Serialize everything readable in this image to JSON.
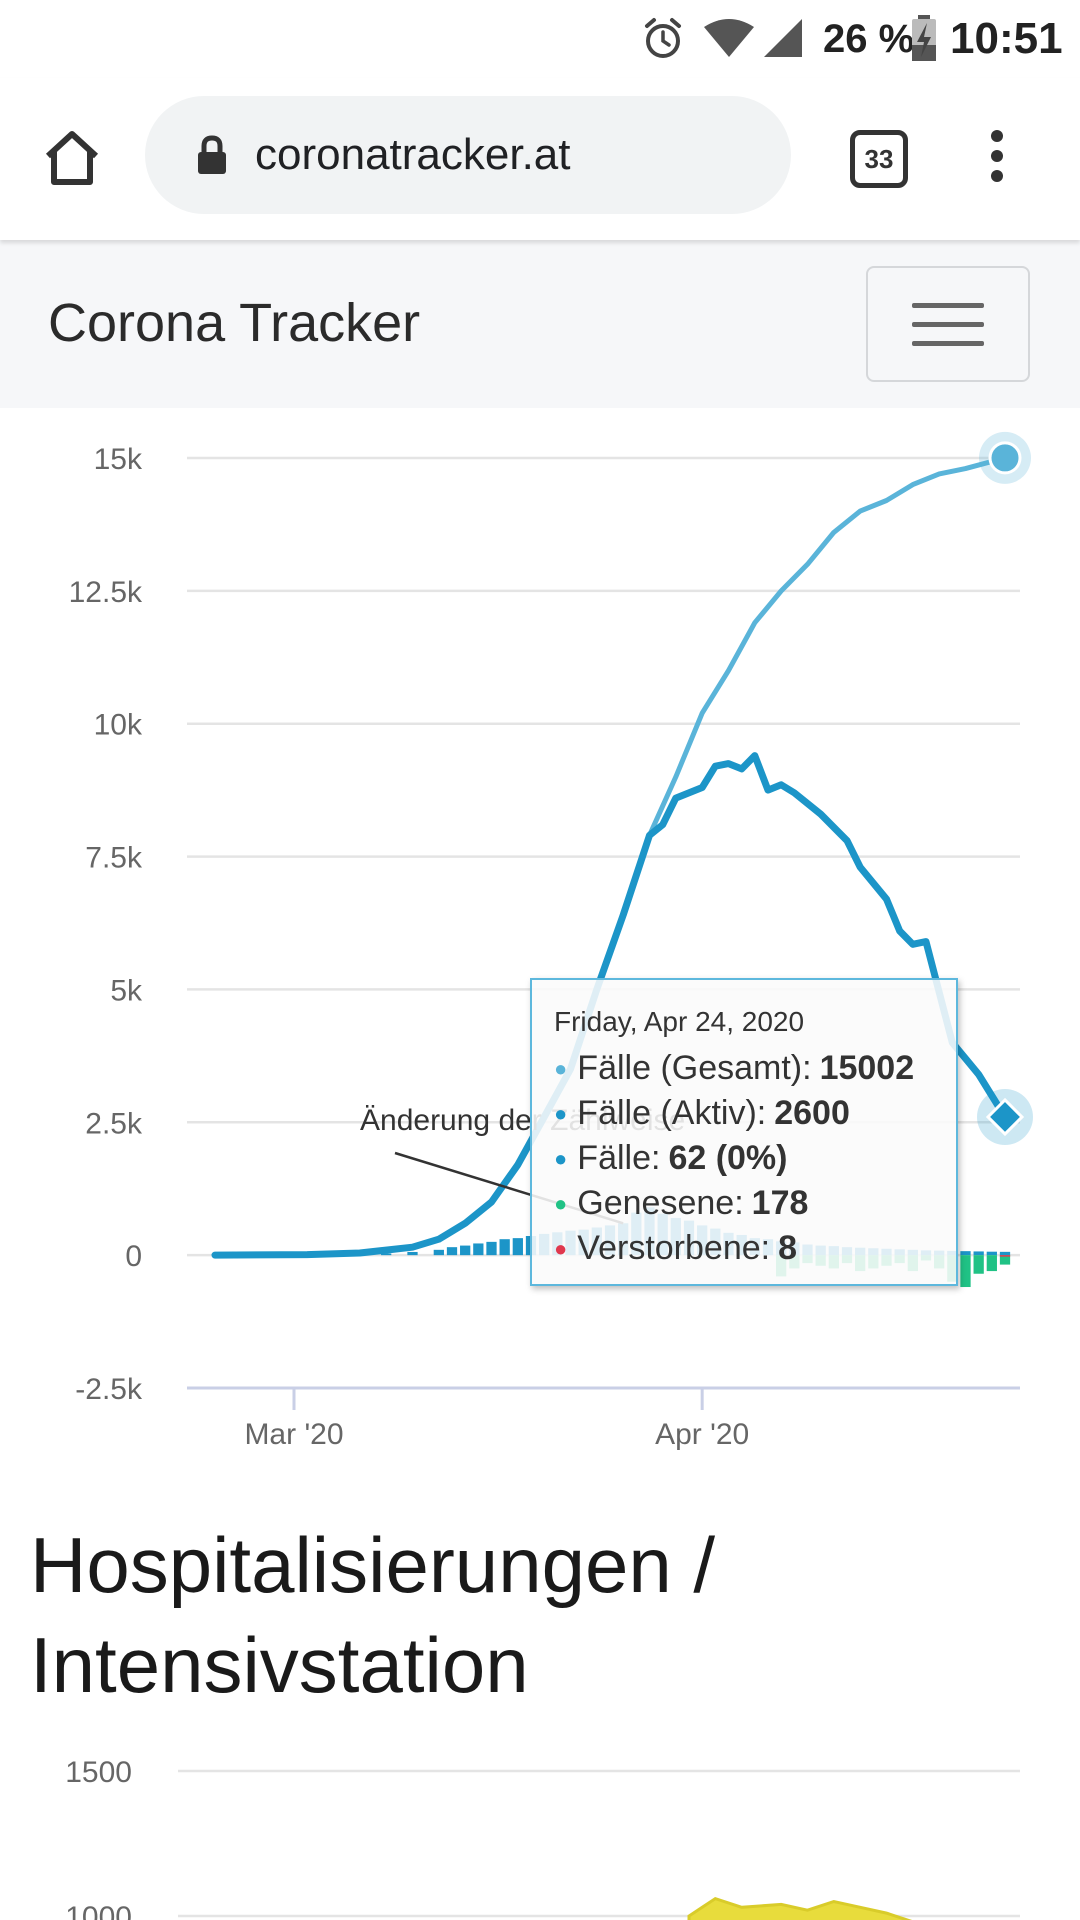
{
  "status_bar": {
    "battery": "26 %",
    "time": "10:51",
    "icons": [
      "alarm-icon",
      "wifi-icon",
      "signal-icon",
      "battery-charging-icon"
    ]
  },
  "browser": {
    "url": "coronatracker.at",
    "tab_count": "33",
    "icons": [
      "home-icon",
      "lock-icon",
      "tabs-icon",
      "menu-dots-icon"
    ]
  },
  "navbar": {
    "brand": "Corona Tracker",
    "icons": [
      "hamburger-icon"
    ]
  },
  "colors": {
    "gesamt": "#5ab4d9",
    "aktiv": "#1c95c8",
    "faelle": "#1c95c8",
    "genesene": "#20c285",
    "verstorbene": "#e0384e",
    "grid": "#e0e0e0"
  },
  "chart_data": [
    {
      "type": "line",
      "y_ticks": [
        "15k",
        "12.5k",
        "10k",
        "7.5k",
        "5k",
        "2.5k",
        "0",
        "-2.5k"
      ],
      "ylim": [
        -2500,
        15000
      ],
      "x_ticks": [
        {
          "label": "Mar '20",
          "date": "2020-03-01"
        },
        {
          "label": "Apr '20",
          "date": "2020-04-01"
        }
      ],
      "x_range": [
        "2020-02-24",
        "2020-04-24"
      ],
      "grid": true,
      "annotation": "Änderung der Zählweise",
      "series": [
        {
          "name": "Fälle (Gesamt)",
          "type": "line",
          "points": [
            [
              "2020-02-24",
              0
            ],
            [
              "2020-03-02",
              10
            ],
            [
              "2020-03-06",
              40
            ],
            [
              "2020-03-10",
              150
            ],
            [
              "2020-03-12",
              300
            ],
            [
              "2020-03-14",
              600
            ],
            [
              "2020-03-16",
              1000
            ],
            [
              "2020-03-18",
              1700
            ],
            [
              "2020-03-20",
              2600
            ],
            [
              "2020-03-22",
              3500
            ],
            [
              "2020-03-24",
              5000
            ],
            [
              "2020-03-26",
              6400
            ],
            [
              "2020-03-28",
              7900
            ],
            [
              "2020-03-30",
              9000
            ],
            [
              "2020-04-01",
              10200
            ],
            [
              "2020-04-03",
              11000
            ],
            [
              "2020-04-05",
              11900
            ],
            [
              "2020-04-07",
              12500
            ],
            [
              "2020-04-09",
              13000
            ],
            [
              "2020-04-11",
              13600
            ],
            [
              "2020-04-13",
              14000
            ],
            [
              "2020-04-15",
              14200
            ],
            [
              "2020-04-17",
              14500
            ],
            [
              "2020-04-19",
              14700
            ],
            [
              "2020-04-21",
              14800
            ],
            [
              "2020-04-24",
              15002
            ]
          ]
        },
        {
          "name": "Fälle (Aktiv)",
          "type": "line",
          "points": [
            [
              "2020-02-24",
              0
            ],
            [
              "2020-03-02",
              10
            ],
            [
              "2020-03-06",
              40
            ],
            [
              "2020-03-10",
              150
            ],
            [
              "2020-03-12",
              300
            ],
            [
              "2020-03-14",
              600
            ],
            [
              "2020-03-16",
              1000
            ],
            [
              "2020-03-18",
              1700
            ],
            [
              "2020-03-20",
              2600
            ],
            [
              "2020-03-22",
              3500
            ],
            [
              "2020-03-24",
              5000
            ],
            [
              "2020-03-26",
              6400
            ],
            [
              "2020-03-28",
              7900
            ],
            [
              "2020-03-29",
              8100
            ],
            [
              "2020-03-30",
              8600
            ],
            [
              "2020-04-01",
              8800
            ],
            [
              "2020-04-02",
              9200
            ],
            [
              "2020-04-03",
              9250
            ],
            [
              "2020-04-04",
              9150
            ],
            [
              "2020-04-05",
              9400
            ],
            [
              "2020-04-06",
              8750
            ],
            [
              "2020-04-07",
              8850
            ],
            [
              "2020-04-08",
              8700
            ],
            [
              "2020-04-10",
              8300
            ],
            [
              "2020-04-12",
              7800
            ],
            [
              "2020-04-13",
              7300
            ],
            [
              "2020-04-15",
              6700
            ],
            [
              "2020-04-16",
              6100
            ],
            [
              "2020-04-17",
              5850
            ],
            [
              "2020-04-18",
              5900
            ],
            [
              "2020-04-20",
              4000
            ],
            [
              "2020-04-21",
              3700
            ],
            [
              "2020-04-22",
              3400
            ],
            [
              "2020-04-24",
              2600
            ]
          ]
        },
        {
          "name": "Fälle",
          "type": "bar",
          "points": [
            [
              "2020-03-06",
              20
            ],
            [
              "2020-03-08",
              30
            ],
            [
              "2020-03-10",
              60
            ],
            [
              "2020-03-12",
              100
            ],
            [
              "2020-03-13",
              150
            ],
            [
              "2020-03-14",
              180
            ],
            [
              "2020-03-15",
              220
            ],
            [
              "2020-03-16",
              250
            ],
            [
              "2020-03-17",
              300
            ],
            [
              "2020-03-18",
              320
            ],
            [
              "2020-03-19",
              360
            ],
            [
              "2020-03-20",
              400
            ],
            [
              "2020-03-21",
              430
            ],
            [
              "2020-03-22",
              460
            ],
            [
              "2020-03-23",
              480
            ],
            [
              "2020-03-24",
              520
            ],
            [
              "2020-03-25",
              560
            ],
            [
              "2020-03-26",
              600
            ],
            [
              "2020-03-27",
              800
            ],
            [
              "2020-03-28",
              900
            ],
            [
              "2020-03-29",
              780
            ],
            [
              "2020-03-30",
              700
            ],
            [
              "2020-03-31",
              650
            ],
            [
              "2020-04-01",
              560
            ],
            [
              "2020-04-02",
              500
            ],
            [
              "2020-04-03",
              420
            ],
            [
              "2020-04-04",
              380
            ],
            [
              "2020-04-05",
              320
            ],
            [
              "2020-04-06",
              300
            ],
            [
              "2020-04-07",
              260
            ],
            [
              "2020-04-08",
              240
            ],
            [
              "2020-04-09",
              200
            ],
            [
              "2020-04-10",
              180
            ],
            [
              "2020-04-11",
              170
            ],
            [
              "2020-04-12",
              150
            ],
            [
              "2020-04-13",
              140
            ],
            [
              "2020-04-14",
              130
            ],
            [
              "2020-04-15",
              120
            ],
            [
              "2020-04-16",
              110
            ],
            [
              "2020-04-17",
              100
            ],
            [
              "2020-04-18",
              90
            ],
            [
              "2020-04-19",
              85
            ],
            [
              "2020-04-20",
              80
            ],
            [
              "2020-04-21",
              75
            ],
            [
              "2020-04-22",
              70
            ],
            [
              "2020-04-23",
              65
            ],
            [
              "2020-04-24",
              62
            ]
          ]
        },
        {
          "name": "Genesene",
          "type": "bar",
          "points": [
            [
              "2020-04-07",
              -400
            ],
            [
              "2020-04-08",
              -250
            ],
            [
              "2020-04-09",
              -150
            ],
            [
              "2020-04-10",
              -200
            ],
            [
              "2020-04-11",
              -250
            ],
            [
              "2020-04-12",
              -150
            ],
            [
              "2020-04-13",
              -300
            ],
            [
              "2020-04-14",
              -250
            ],
            [
              "2020-04-15",
              -200
            ],
            [
              "2020-04-16",
              -150
            ],
            [
              "2020-04-17",
              -300
            ],
            [
              "2020-04-18",
              -100
            ],
            [
              "2020-04-19",
              -250
            ],
            [
              "2020-04-20",
              -500
            ],
            [
              "2020-04-21",
              -600
            ],
            [
              "2020-04-22",
              -350
            ],
            [
              "2020-04-23",
              -300
            ],
            [
              "2020-04-24",
              -178
            ]
          ]
        },
        {
          "name": "Verstorbene",
          "type": "bar",
          "points": [
            [
              "2020-04-24",
              -8
            ]
          ]
        }
      ],
      "tooltip": {
        "date": "Friday, Apr 24, 2020",
        "rows": [
          {
            "label": "Fälle (Gesamt): ",
            "value": "15002",
            "color": "#5ab4d9"
          },
          {
            "label": "Fälle (Aktiv): ",
            "value": "2600",
            "color": "#1c95c8"
          },
          {
            "label": "Fälle: ",
            "value": "62 (0%)",
            "color": "#1c95c8"
          },
          {
            "label": "Genesene: ",
            "value": "178",
            "color": "#20c285"
          },
          {
            "label": "Verstorbene: ",
            "value": "8",
            "color": "#e0384e"
          }
        ]
      }
    },
    {
      "type": "area",
      "y_ticks": [
        "1500",
        "1000"
      ],
      "ylim": [
        0,
        1500
      ],
      "x_range": [
        "2020-02-24",
        "2020-04-24"
      ],
      "grid": true,
      "series": [
        {
          "type": "area",
          "color": "#e8dc3c",
          "points": [
            [
              "2020-03-31",
              1000
            ],
            [
              "2020-04-02",
              1060
            ],
            [
              "2020-04-04",
              1030
            ],
            [
              "2020-04-07",
              1040
            ],
            [
              "2020-04-09",
              1020
            ],
            [
              "2020-04-11",
              1050
            ],
            [
              "2020-04-13",
              1030
            ],
            [
              "2020-04-15",
              1010
            ],
            [
              "2020-04-17",
              980
            ]
          ]
        }
      ]
    }
  ],
  "section": {
    "title": "Hospitalisierungen / Intensivstation"
  }
}
